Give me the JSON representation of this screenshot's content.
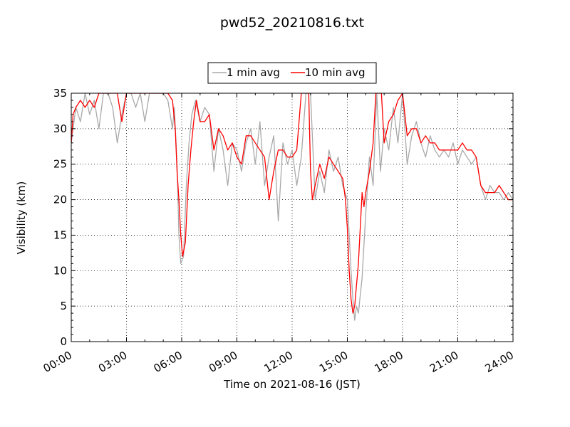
{
  "chart_data": {
    "type": "line",
    "title": "pwd52_20210816.txt",
    "xlabel": "Time on 2021-08-16 (JST)",
    "ylabel": "Visibility (km)",
    "xlim": [
      0,
      24
    ],
    "ylim": [
      0,
      35
    ],
    "xtick_labels": [
      "00:00",
      "03:00",
      "06:00",
      "09:00",
      "12:00",
      "15:00",
      "18:00",
      "21:00",
      "24:00"
    ],
    "ytick_labels": [
      "0",
      "5",
      "10",
      "15",
      "20",
      "25",
      "30",
      "35"
    ],
    "grid": true,
    "legend_position": "top-center",
    "colors": {
      "1 min avg": "#a9a9a9",
      "10 min avg": "#ff0000"
    },
    "series": [
      {
        "name": "1 min avg",
        "x": [
          0.0,
          0.25,
          0.5,
          0.75,
          1.0,
          1.25,
          1.5,
          1.75,
          2.0,
          2.25,
          2.5,
          2.75,
          3.0,
          3.25,
          3.5,
          3.75,
          4.0,
          4.25,
          4.5,
          4.75,
          5.0,
          5.25,
          5.5,
          5.6,
          5.75,
          5.85,
          5.95,
          6.1,
          6.25,
          6.4,
          6.55,
          6.75,
          7.0,
          7.25,
          7.5,
          7.75,
          8.0,
          8.25,
          8.5,
          8.75,
          9.0,
          9.25,
          9.5,
          9.75,
          10.0,
          10.25,
          10.5,
          10.75,
          11.0,
          11.25,
          11.5,
          11.75,
          12.0,
          12.25,
          12.5,
          12.75,
          13.0,
          13.25,
          13.5,
          13.75,
          14.0,
          14.25,
          14.5,
          14.75,
          15.0,
          15.1,
          15.2,
          15.3,
          15.4,
          15.5,
          15.6,
          15.8,
          16.0,
          16.2,
          16.4,
          16.6,
          16.8,
          17.0,
          17.25,
          17.5,
          17.75,
          18.0,
          18.25,
          18.5,
          18.75,
          19.0,
          19.25,
          19.5,
          19.75,
          20.0,
          20.25,
          20.5,
          20.75,
          21.0,
          21.25,
          21.5,
          21.75,
          22.0,
          22.25,
          22.5,
          22.75,
          23.0,
          23.25,
          23.5,
          23.75,
          24.0
        ],
        "y": [
          28,
          33,
          31,
          35,
          32,
          34,
          30,
          35,
          35,
          33,
          28,
          32,
          35,
          35,
          33,
          35,
          31,
          35,
          35,
          35,
          35,
          34,
          30,
          33,
          25,
          15,
          11,
          12,
          22,
          28,
          32,
          34,
          31,
          33,
          32,
          24,
          30,
          27,
          22,
          28,
          27,
          24,
          28,
          30,
          25,
          31,
          22,
          26,
          29,
          17,
          28,
          25,
          27,
          22,
          26,
          35,
          35,
          20,
          24,
          21,
          27,
          24,
          26,
          22,
          20,
          15,
          10,
          6,
          3,
          5,
          4,
          9,
          18,
          26,
          22,
          35,
          24,
          30,
          27,
          33,
          28,
          35,
          25,
          29,
          31,
          28,
          26,
          29,
          27,
          26,
          27,
          26,
          28,
          25,
          27,
          26,
          25,
          26,
          22,
          20,
          22,
          21,
          21,
          20,
          21,
          20
        ]
      },
      {
        "name": "10 min avg",
        "x": [
          0.0,
          0.1,
          0.25,
          0.5,
          0.75,
          1.0,
          1.25,
          1.5,
          1.75,
          2.0,
          2.25,
          2.5,
          2.75,
          3.0,
          3.25,
          3.5,
          3.75,
          4.0,
          4.25,
          4.5,
          4.75,
          5.0,
          5.25,
          5.5,
          5.65,
          5.75,
          5.85,
          5.95,
          6.05,
          6.2,
          6.35,
          6.5,
          6.65,
          6.8,
          7.0,
          7.25,
          7.5,
          7.75,
          8.0,
          8.25,
          8.5,
          8.75,
          9.0,
          9.25,
          9.5,
          9.75,
          10.0,
          10.25,
          10.5,
          10.75,
          11.0,
          11.25,
          11.5,
          11.75,
          12.0,
          12.25,
          12.5,
          12.7,
          12.8,
          12.9,
          13.0,
          13.1,
          13.25,
          13.5,
          13.75,
          14.0,
          14.25,
          14.5,
          14.75,
          14.9,
          15.0,
          15.1,
          15.2,
          15.3,
          15.4,
          15.5,
          15.6,
          15.7,
          15.8,
          15.9,
          16.0,
          16.2,
          16.4,
          16.55,
          16.65,
          16.75,
          16.85,
          17.0,
          17.25,
          17.5,
          17.75,
          18.0,
          18.25,
          18.5,
          18.75,
          19.0,
          19.25,
          19.5,
          19.75,
          20.0,
          20.25,
          20.5,
          20.75,
          21.0,
          21.25,
          21.5,
          21.75,
          22.0,
          22.25,
          22.5,
          22.75,
          23.0,
          23.25,
          23.5,
          23.75,
          24.0
        ],
        "y": [
          28,
          32,
          33,
          34,
          33,
          34,
          33,
          35,
          35,
          35,
          35,
          35,
          31,
          35,
          35,
          35,
          35,
          35,
          35,
          35,
          35,
          35,
          35,
          34,
          30,
          24,
          20,
          15,
          12,
          14,
          22,
          27,
          31,
          34,
          31,
          31,
          32,
          27,
          30,
          29,
          27,
          28,
          26,
          25,
          29,
          29,
          28,
          27,
          26,
          20,
          24,
          27,
          27,
          26,
          26,
          27,
          35,
          35,
          35,
          35,
          24,
          20,
          22,
          25,
          23,
          26,
          25,
          24,
          23,
          20,
          16,
          10,
          6,
          4,
          5,
          8,
          11,
          16,
          21,
          19,
          21,
          24,
          28,
          35,
          35,
          35,
          35,
          28,
          31,
          32,
          34,
          35,
          29,
          30,
          30,
          28,
          29,
          28,
          28,
          27,
          27,
          27,
          27,
          27,
          28,
          27,
          27,
          26,
          22,
          21,
          21,
          21,
          22,
          21,
          20,
          20
        ]
      }
    ]
  }
}
